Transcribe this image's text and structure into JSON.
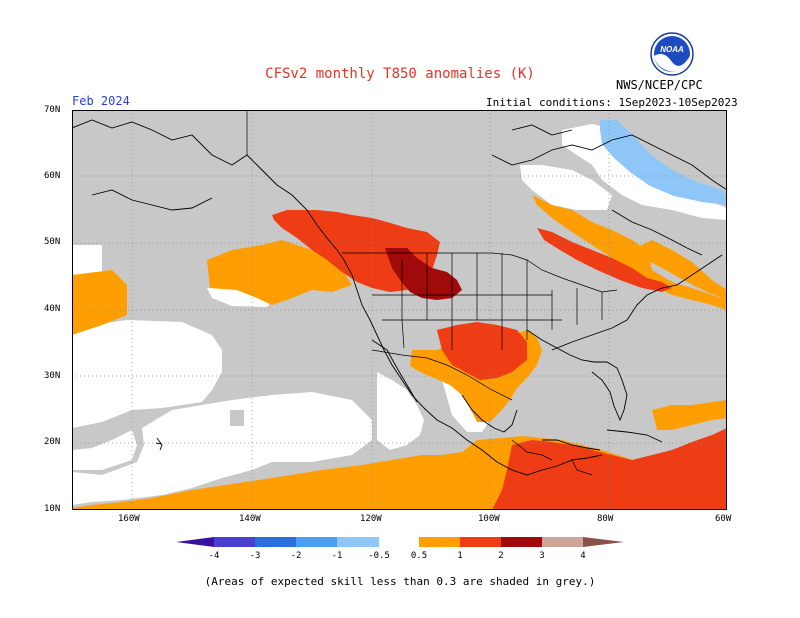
{
  "header": {
    "title": "CFSv2 monthly T850 anomalies (K)",
    "month": "Feb 2024",
    "initial_conditions": "Initial conditions: 1Sep2023-10Sep2023",
    "agency": "NWS/NCEP/CPC",
    "logo_text": "NOAA"
  },
  "axes": {
    "lat_labels": [
      "70N",
      "60N",
      "50N",
      "40N",
      "30N",
      "20N",
      "10N"
    ],
    "lon_labels": [
      "160W",
      "140W",
      "120W",
      "100W",
      "80W",
      "60W"
    ]
  },
  "colorbar": {
    "labels": [
      "-4",
      "-3",
      "-2",
      "-1",
      "-0.5",
      "0.5",
      "1",
      "2",
      "3",
      "4"
    ],
    "colors": {
      "lt_neg4": "#3a10a0",
      "neg4_neg3": "#4a3fd0",
      "neg3_neg2": "#2a6fdc",
      "neg2_neg1": "#4a9ff0",
      "neg1_neg05": "#8ec6f8",
      "neutral": "#ffffff",
      "pos05_1": "#ff9e00",
      "pos1_2": "#ee3d14",
      "pos2_3": "#a00a0a",
      "pos3_4": "#c9a59b",
      "gt4": "#8a5248"
    }
  },
  "map_colors": {
    "grey_low_skill": "#c8c8c8",
    "land_border": "#000000",
    "grid": "#888888"
  },
  "footer": {
    "skill_note": "(Areas of expected skill less than 0.3 are shaded in grey.)"
  }
}
